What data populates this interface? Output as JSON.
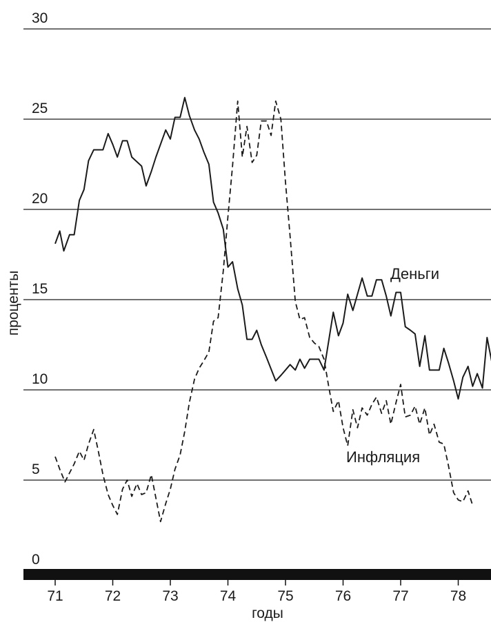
{
  "chart_data": {
    "type": "line",
    "title": "",
    "xlabel": "годы",
    "ylabel": "проценты",
    "xlim": [
      70.55,
      78.55
    ],
    "ylim": [
      0,
      30
    ],
    "grid": "horizontal",
    "x_ticks": [
      "71",
      "72",
      "73",
      "74",
      "75",
      "76",
      "77",
      "78"
    ],
    "y_ticks": [
      "0",
      "5",
      "10",
      "15",
      "20",
      "25",
      "30"
    ],
    "colors": {
      "line": "#1a1a1a",
      "axis_bar": "#111111"
    },
    "series": [
      {
        "name": "Деньги",
        "style": "solid",
        "points": [
          [
            71.0,
            18.1
          ],
          [
            71.08,
            18.8
          ],
          [
            71.15,
            17.7
          ],
          [
            71.25,
            18.6
          ],
          [
            71.33,
            18.6
          ],
          [
            71.42,
            20.5
          ],
          [
            71.5,
            21.1
          ],
          [
            71.58,
            22.7
          ],
          [
            71.67,
            23.3
          ],
          [
            71.83,
            23.3
          ],
          [
            71.92,
            24.2
          ],
          [
            72.0,
            23.6
          ],
          [
            72.08,
            22.9
          ],
          [
            72.17,
            23.8
          ],
          [
            72.25,
            23.8
          ],
          [
            72.33,
            22.9
          ],
          [
            72.5,
            22.4
          ],
          [
            72.58,
            21.3
          ],
          [
            72.67,
            22.1
          ],
          [
            72.75,
            22.9
          ],
          [
            72.92,
            24.4
          ],
          [
            73.0,
            23.9
          ],
          [
            73.08,
            25.1
          ],
          [
            73.17,
            25.1
          ],
          [
            73.25,
            26.2
          ],
          [
            73.33,
            25.2
          ],
          [
            73.42,
            24.4
          ],
          [
            73.5,
            23.9
          ],
          [
            73.58,
            23.2
          ],
          [
            73.67,
            22.5
          ],
          [
            73.75,
            20.4
          ],
          [
            73.83,
            19.8
          ],
          [
            73.92,
            18.9
          ],
          [
            74.0,
            16.8
          ],
          [
            74.08,
            17.1
          ],
          [
            74.17,
            15.6
          ],
          [
            74.25,
            14.7
          ],
          [
            74.33,
            12.8
          ],
          [
            74.42,
            12.8
          ],
          [
            74.5,
            13.3
          ],
          [
            74.58,
            12.5
          ],
          [
            74.67,
            11.8
          ],
          [
            74.83,
            10.5
          ],
          [
            74.92,
            10.8
          ],
          [
            75.0,
            11.1
          ],
          [
            75.08,
            11.4
          ],
          [
            75.17,
            11.1
          ],
          [
            75.25,
            11.7
          ],
          [
            75.33,
            11.2
          ],
          [
            75.42,
            11.7
          ],
          [
            75.5,
            11.7
          ],
          [
            75.58,
            11.7
          ],
          [
            75.67,
            11.1
          ],
          [
            75.75,
            12.7
          ],
          [
            75.83,
            14.3
          ],
          [
            75.92,
            13.0
          ],
          [
            76.0,
            13.7
          ],
          [
            76.08,
            15.3
          ],
          [
            76.17,
            14.4
          ],
          [
            76.25,
            15.3
          ],
          [
            76.33,
            16.2
          ],
          [
            76.42,
            15.2
          ],
          [
            76.5,
            15.2
          ],
          [
            76.58,
            16.1
          ],
          [
            76.67,
            16.1
          ],
          [
            76.75,
            15.2
          ],
          [
            76.83,
            14.1
          ],
          [
            76.92,
            15.4
          ],
          [
            77.0,
            15.4
          ],
          [
            77.08,
            13.5
          ],
          [
            77.17,
            13.3
          ],
          [
            77.25,
            13.1
          ],
          [
            77.33,
            11.3
          ],
          [
            77.42,
            13.0
          ],
          [
            77.5,
            11.1
          ],
          [
            77.58,
            11.1
          ],
          [
            77.67,
            11.1
          ],
          [
            77.75,
            12.3
          ],
          [
            77.83,
            11.5
          ],
          [
            77.92,
            10.5
          ],
          [
            78.0,
            9.5
          ],
          [
            78.08,
            10.7
          ],
          [
            78.17,
            11.3
          ],
          [
            78.25,
            10.2
          ],
          [
            78.33,
            10.9
          ],
          [
            78.42,
            10.1
          ],
          [
            78.5,
            12.9
          ],
          [
            78.58,
            11.6
          ]
        ]
      },
      {
        "name": "Инфляция",
        "style": "dashed",
        "points": [
          [
            71.0,
            6.3
          ],
          [
            71.08,
            5.6
          ],
          [
            71.17,
            4.9
          ],
          [
            71.25,
            5.4
          ],
          [
            71.33,
            5.9
          ],
          [
            71.42,
            6.6
          ],
          [
            71.5,
            6.1
          ],
          [
            71.58,
            7.0
          ],
          [
            71.67,
            7.8
          ],
          [
            71.75,
            6.6
          ],
          [
            71.83,
            5.3
          ],
          [
            71.92,
            4.2
          ],
          [
            72.0,
            3.6
          ],
          [
            72.08,
            3.1
          ],
          [
            72.17,
            4.5
          ],
          [
            72.25,
            5.0
          ],
          [
            72.33,
            4.1
          ],
          [
            72.42,
            4.8
          ],
          [
            72.5,
            4.2
          ],
          [
            72.58,
            4.3
          ],
          [
            72.67,
            5.3
          ],
          [
            72.75,
            4.0
          ],
          [
            72.83,
            2.7
          ],
          [
            72.92,
            3.7
          ],
          [
            73.0,
            4.5
          ],
          [
            73.08,
            5.6
          ],
          [
            73.17,
            6.4
          ],
          [
            73.25,
            7.7
          ],
          [
            73.33,
            9.3
          ],
          [
            73.42,
            10.6
          ],
          [
            73.5,
            11.2
          ],
          [
            73.58,
            11.6
          ],
          [
            73.67,
            12.1
          ],
          [
            73.75,
            13.8
          ],
          [
            73.83,
            14.0
          ],
          [
            73.92,
            16.6
          ],
          [
            74.0,
            19.6
          ],
          [
            74.08,
            22.4
          ],
          [
            74.17,
            26.0
          ],
          [
            74.25,
            22.9
          ],
          [
            74.33,
            24.6
          ],
          [
            74.42,
            22.6
          ],
          [
            74.5,
            23.0
          ],
          [
            74.58,
            24.9
          ],
          [
            74.67,
            24.9
          ],
          [
            74.75,
            24.1
          ],
          [
            74.83,
            26.0
          ],
          [
            74.92,
            25.0
          ],
          [
            75.0,
            21.5
          ],
          [
            75.08,
            18.5
          ],
          [
            75.17,
            14.9
          ],
          [
            75.25,
            13.9
          ],
          [
            75.33,
            14.0
          ],
          [
            75.42,
            12.9
          ],
          [
            75.5,
            12.6
          ],
          [
            75.58,
            12.4
          ],
          [
            75.67,
            11.7
          ],
          [
            75.75,
            10.2
          ],
          [
            75.83,
            8.8
          ],
          [
            75.92,
            9.4
          ],
          [
            76.0,
            7.9
          ],
          [
            76.08,
            6.9
          ],
          [
            76.17,
            8.9
          ],
          [
            76.25,
            7.9
          ],
          [
            76.33,
            9.0
          ],
          [
            76.42,
            8.6
          ],
          [
            76.5,
            9.2
          ],
          [
            76.58,
            9.6
          ],
          [
            76.67,
            8.7
          ],
          [
            76.75,
            9.4
          ],
          [
            76.83,
            8.1
          ],
          [
            76.92,
            9.3
          ],
          [
            77.0,
            10.3
          ],
          [
            77.08,
            8.5
          ],
          [
            77.17,
            8.6
          ],
          [
            77.25,
            9.1
          ],
          [
            77.33,
            8.1
          ],
          [
            77.42,
            9.0
          ],
          [
            77.5,
            7.5
          ],
          [
            77.58,
            8.1
          ],
          [
            77.67,
            7.1
          ],
          [
            77.75,
            7.0
          ],
          [
            77.83,
            5.8
          ],
          [
            77.92,
            4.3
          ],
          [
            78.0,
            3.9
          ],
          [
            78.08,
            3.8
          ],
          [
            78.17,
            4.4
          ],
          [
            78.25,
            3.6
          ]
        ]
      }
    ]
  }
}
